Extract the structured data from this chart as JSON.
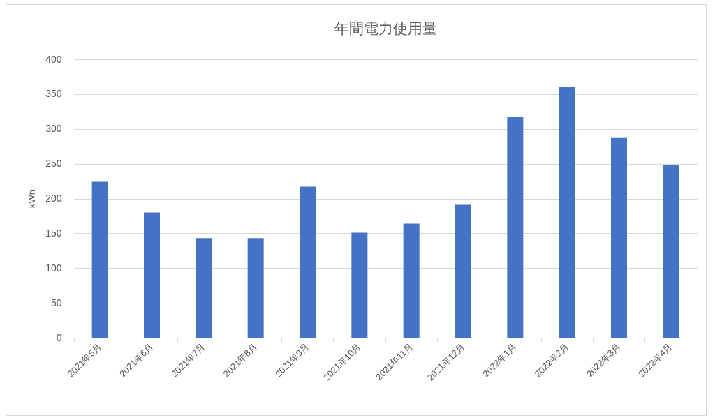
{
  "chart_data": {
    "type": "bar",
    "title": "年間電力使用量",
    "ylabel": "kWh",
    "categories": [
      "2021年5月",
      "2021年6月",
      "2021年7月",
      "2021年8月",
      "2021年9月",
      "2021年10月",
      "2021年11月",
      "2021年12月",
      "2022年1月",
      "2022年2月",
      "2022年3月",
      "2022年4月"
    ],
    "values": [
      224,
      180,
      143,
      143,
      217,
      151,
      164,
      191,
      317,
      360,
      287,
      248
    ],
    "color": "#4472c4",
    "ylim": [
      0,
      400
    ],
    "yticks": [
      0,
      50,
      100,
      150,
      200,
      250,
      300,
      350,
      400
    ],
    "grid": "y"
  }
}
